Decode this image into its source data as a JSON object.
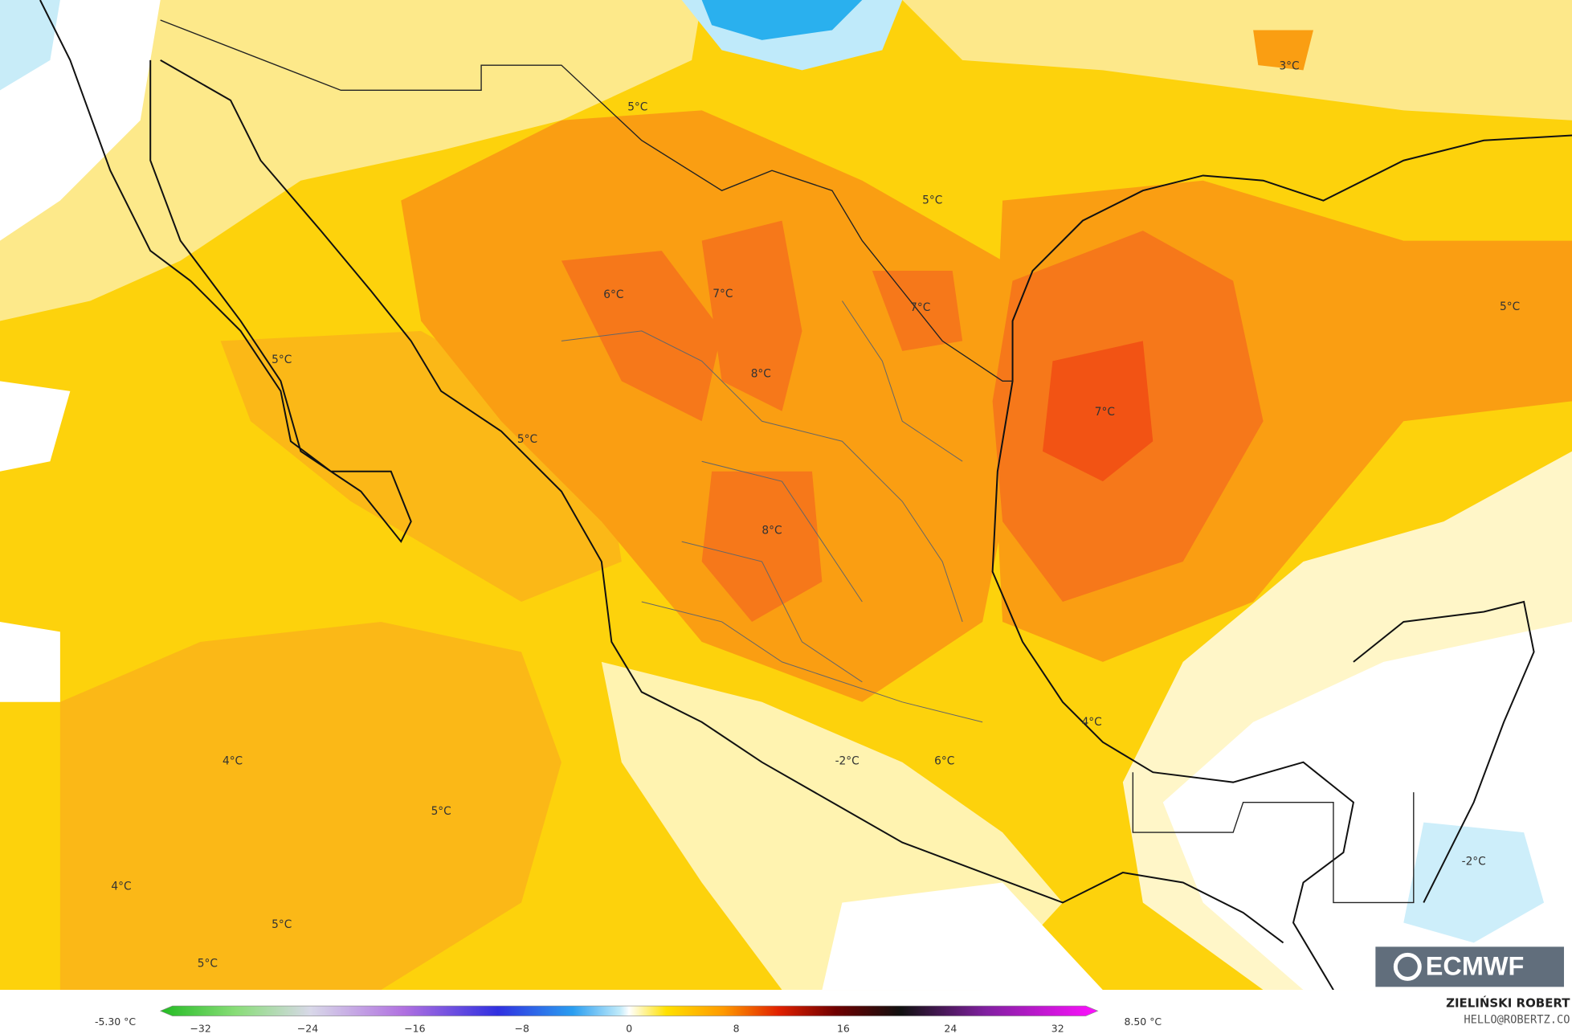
{
  "map": {
    "labels": [
      "3°C",
      "5°C",
      "5°C",
      "6°C",
      "7°C",
      "7°C",
      "5°C",
      "5°C",
      "8°C",
      "7°C",
      "5°C",
      "8°C",
      "4°C",
      "4°C",
      "-2°C",
      "6°C",
      "5°C",
      "-2°C",
      "4°C",
      "5°C",
      "5°C"
    ]
  },
  "colorbar": {
    "min_label": "-5.30 °C",
    "max_label": "8.50 °C",
    "ticks": [
      "−32",
      "−24",
      "−16",
      "−8",
      "0",
      "8",
      "16",
      "24",
      "32"
    ]
  },
  "credits": {
    "author": "ZIELIŃSKI ROBERT",
    "contact": "HELLO@ROBERTZ.CO",
    "logo": "ECMWF"
  }
}
